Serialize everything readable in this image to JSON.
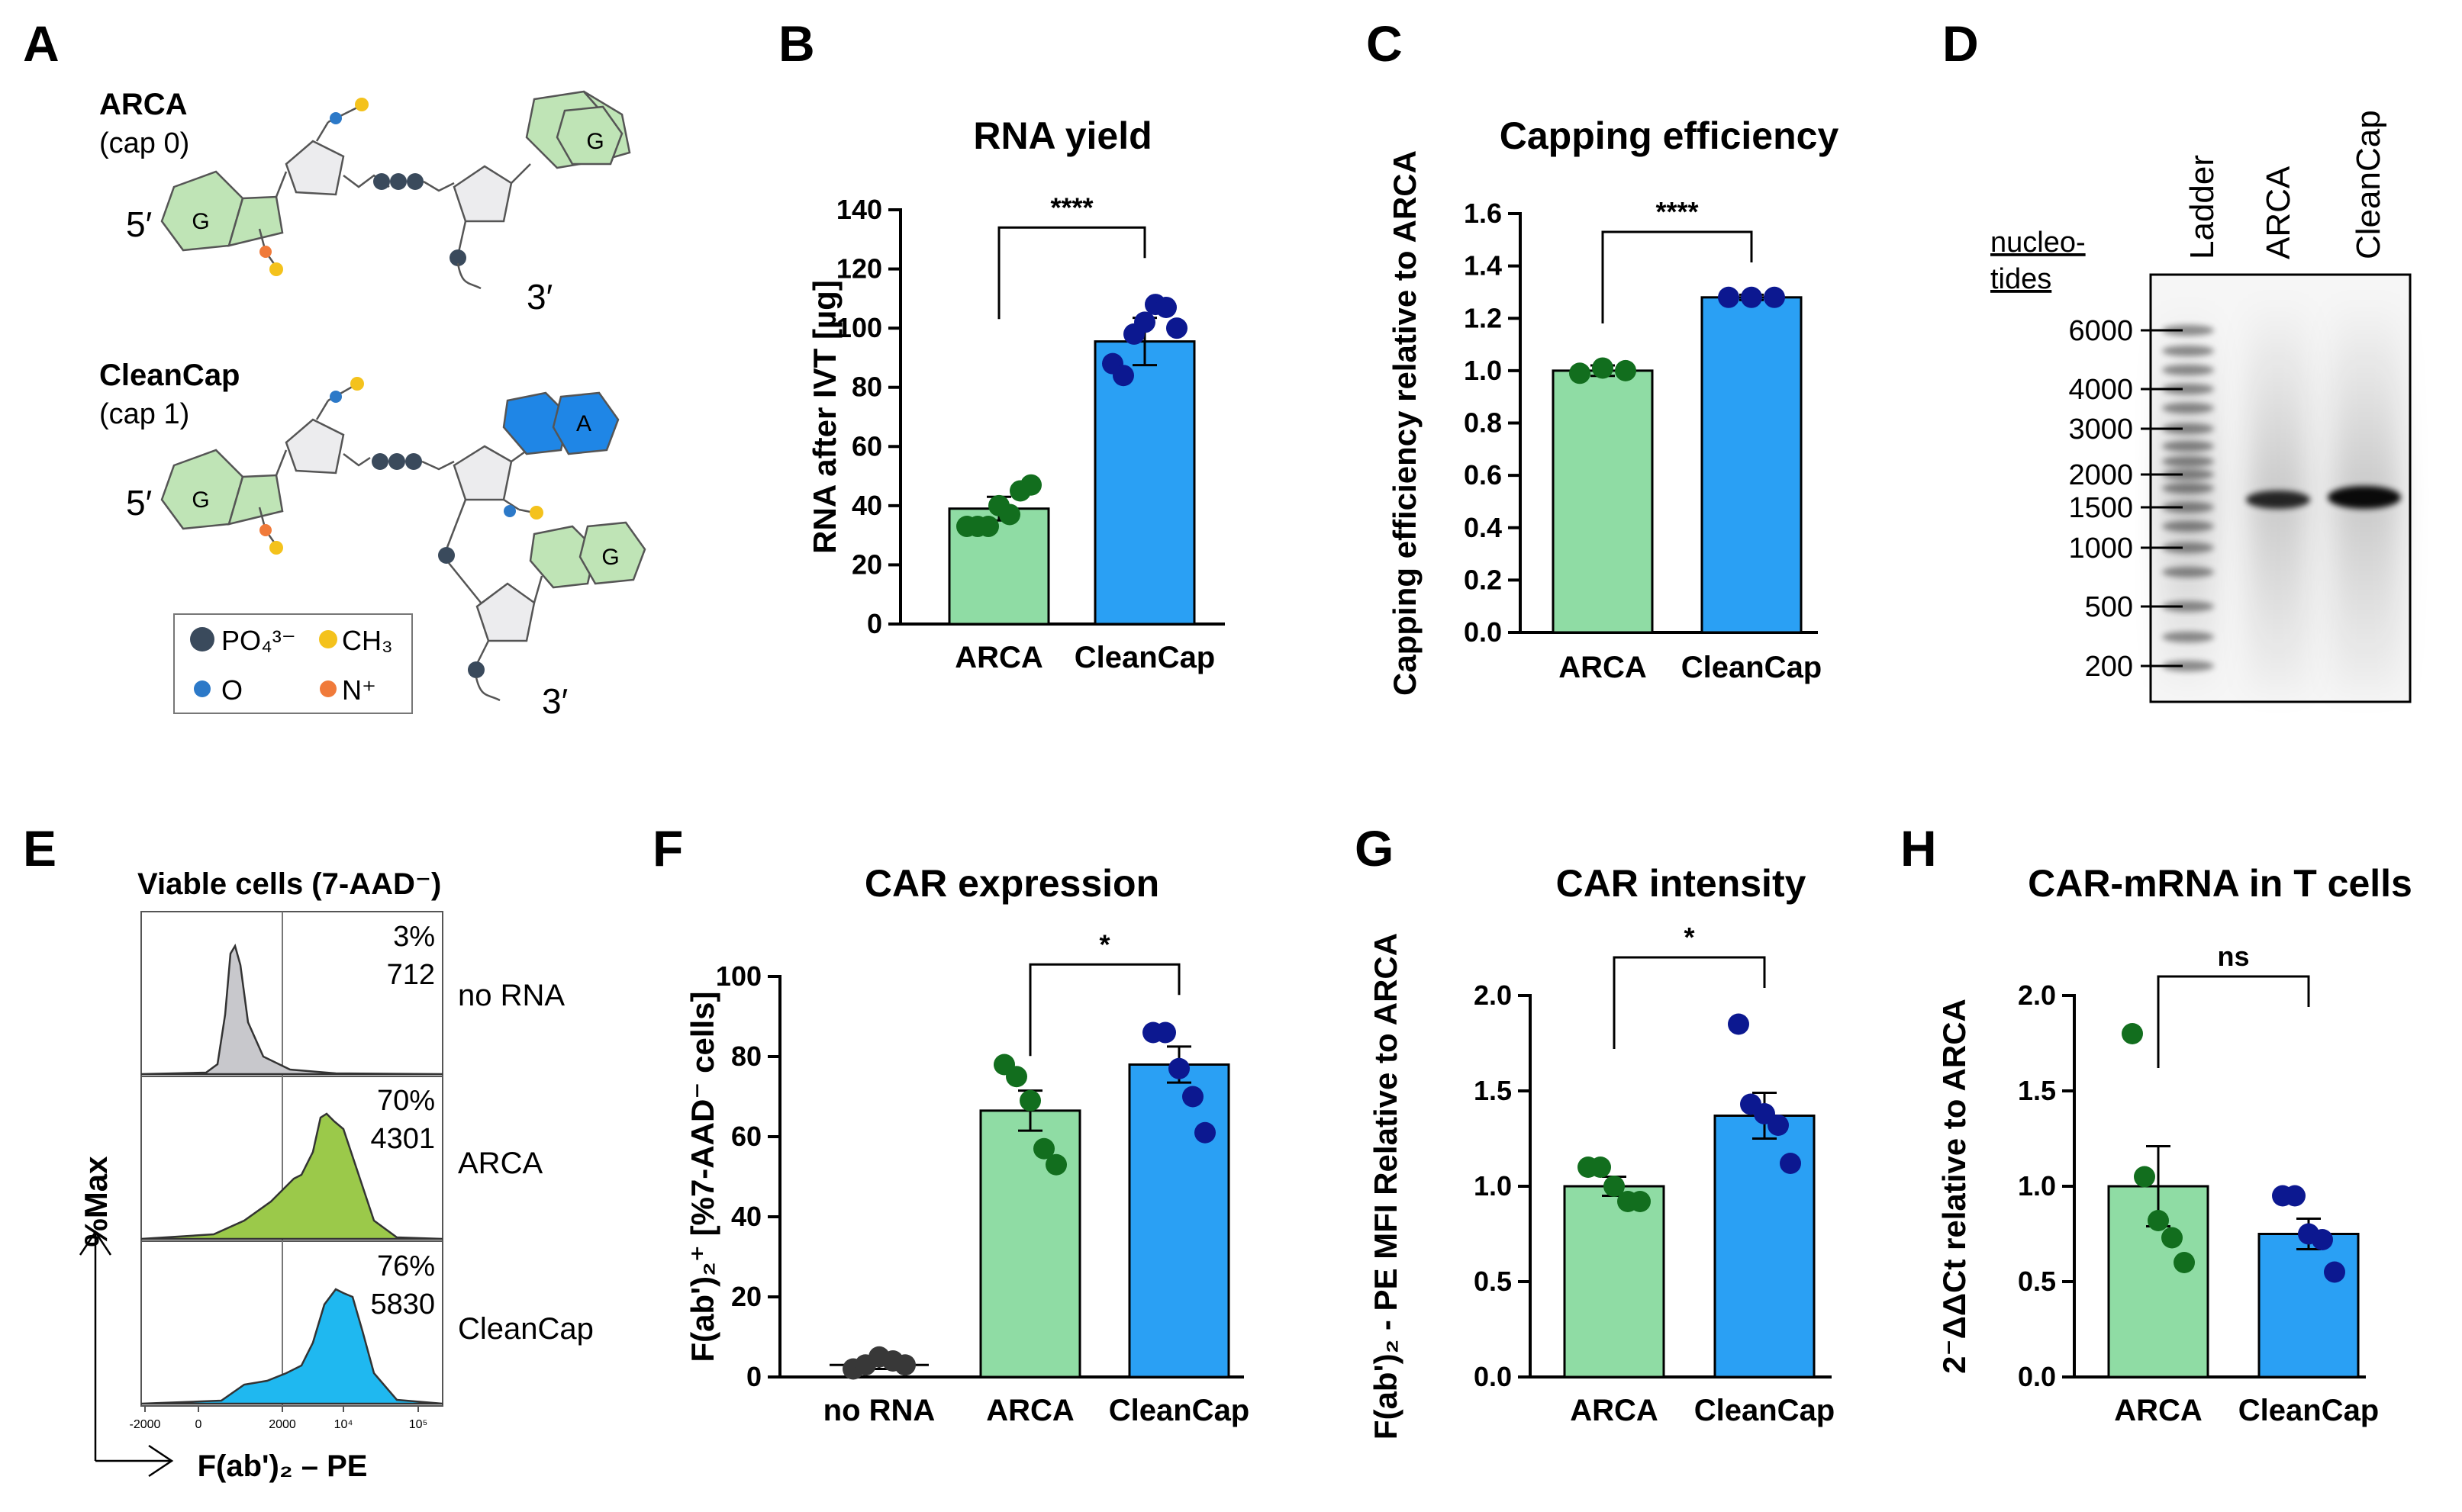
{
  "panel_labels": [
    "A",
    "B",
    "C",
    "D",
    "E",
    "F",
    "G",
    "H"
  ],
  "colors": {
    "green_bar": "#8fdca4",
    "blue_bar": "#2aa0f4",
    "green_dot": "#126e1e",
    "blue_dot": "#0c1890",
    "black_dot": "#383838",
    "pale_green": "#bfe4b6",
    "cap_blue": "#1f86e6",
    "hist_grey": "#c8c8cc",
    "hist_green": "#9bc94a",
    "hist_blue": "#1fb8f0"
  },
  "panelA": {
    "arca_name": "ARCA",
    "arca_cap": "(cap 0)",
    "cleancap_name": "CleanCap",
    "cleancap_cap": "(cap 1)",
    "five_prime": "5′",
    "three_prime": "3′",
    "base_g": "G",
    "base_a": "A",
    "legend": {
      "phosphate": "PO₄³⁻",
      "methyl": "CH₃",
      "oxygen": "O",
      "nitrogen": "N⁺"
    }
  },
  "panelD": {
    "axis_title_1": "nucleo-",
    "axis_title_2": "tides",
    "lanes": [
      "Ladder",
      "ARCA",
      "CleanCap"
    ],
    "markers": [
      "6000",
      "4000",
      "3000",
      "2000",
      "1500",
      "1000",
      "500",
      "200"
    ]
  },
  "panelE": {
    "title": "Viable cells (7-AAD⁻)",
    "y_label": "%Max",
    "x_label": "F(ab')₂ – PE",
    "x_ticks": [
      "-2000",
      "0",
      "2000",
      "10⁴",
      "10⁵"
    ],
    "gate": "2000",
    "rows": [
      {
        "label": "no RNA",
        "percent": "3%",
        "mfi": "712"
      },
      {
        "label": "ARCA",
        "percent": "70%",
        "mfi": "4301"
      },
      {
        "label": "CleanCap",
        "percent": "76%",
        "mfi": "5830"
      }
    ]
  },
  "chart_data": [
    {
      "panel": "B",
      "type": "bar",
      "title": "RNA yield",
      "ylabel": "RNA after IVT [µg]",
      "xlabel": "",
      "ylim": [
        0,
        140
      ],
      "yticks": [
        "0",
        "20",
        "40",
        "60",
        "80",
        "100",
        "120",
        "140"
      ],
      "categories": [
        "ARCA",
        "CleanCap"
      ],
      "values": [
        39,
        95.5
      ],
      "errors": [
        4,
        8
      ],
      "points": [
        [
          33,
          33,
          33,
          40,
          37,
          45,
          47
        ],
        [
          88,
          84,
          98,
          102,
          108,
          107,
          100
        ]
      ],
      "significance": {
        "label": "****",
        "between": [
          0,
          1
        ],
        "at": 134
      }
    },
    {
      "panel": "C",
      "type": "bar",
      "title": "Capping efficiency",
      "ylabel": "Capping efficiency relative to ARCA",
      "xlabel": "",
      "ylim": [
        0,
        1.6
      ],
      "yticks": [
        "0.0",
        "0.2",
        "0.4",
        "0.6",
        "0.8",
        "1.0",
        "1.2",
        "1.4",
        "1.6"
      ],
      "categories": [
        "ARCA",
        "CleanCap"
      ],
      "values": [
        1.0,
        1.28
      ],
      "errors": [
        0.02,
        0.01
      ],
      "points": [
        [
          0.99,
          1.01,
          1.0
        ],
        [
          1.28,
          1.28,
          1.28
        ]
      ],
      "significance": {
        "label": "****",
        "between": [
          0,
          1
        ],
        "at": 1.53
      }
    },
    {
      "panel": "F",
      "type": "bar",
      "title": "CAR expression",
      "ylabel": "F(ab')₂⁺ [%7-AAD⁻ cells]",
      "xlabel": "",
      "ylim": [
        0,
        100
      ],
      "yticks": [
        "0",
        "20",
        "40",
        "60",
        "80",
        "100"
      ],
      "categories": [
        "no RNA",
        "ARCA",
        "CleanCap"
      ],
      "values": [
        3,
        66.5,
        78
      ],
      "errors": [
        1,
        5,
        4.5
      ],
      "points": [
        [
          2,
          3,
          5,
          4,
          3
        ],
        [
          78,
          75,
          69,
          57,
          53
        ],
        [
          86,
          86,
          77,
          70,
          61
        ]
      ],
      "significance": {
        "label": "*",
        "between": [
          1,
          2
        ],
        "at": 103
      }
    },
    {
      "panel": "G",
      "type": "bar",
      "title": "CAR intensity",
      "ylabel": "F(ab')₂ - PE MFI Relative to ARCA",
      "xlabel": "",
      "ylim": [
        0,
        2.0
      ],
      "yticks": [
        "0.0",
        "0.5",
        "1.0",
        "1.5",
        "2.0"
      ],
      "categories": [
        "ARCA",
        "CleanCap"
      ],
      "values": [
        1.0,
        1.37
      ],
      "errors": [
        0.05,
        0.12
      ],
      "points": [
        [
          1.1,
          1.1,
          1.0,
          0.92,
          0.92
        ],
        [
          1.85,
          1.43,
          1.38,
          1.32,
          1.12
        ]
      ],
      "significance": {
        "label": "*",
        "between": [
          0,
          1
        ],
        "at": 2.2
      }
    },
    {
      "panel": "H",
      "type": "bar",
      "title": "CAR-mRNA in T cells",
      "ylabel": "2⁻ΔΔCt relative to ARCA",
      "xlabel": "",
      "ylim": [
        0,
        2.0
      ],
      "yticks": [
        "0.0",
        "0.5",
        "1.0",
        "1.5",
        "2.0"
      ],
      "categories": [
        "ARCA",
        "CleanCap"
      ],
      "values": [
        1.0,
        0.75
      ],
      "errors": [
        0.21,
        0.08
      ],
      "points": [
        [
          1.8,
          1.05,
          0.82,
          0.73,
          0.6
        ],
        [
          0.95,
          0.95,
          0.75,
          0.72,
          0.55
        ]
      ],
      "significance": {
        "label": "ns",
        "between": [
          0,
          1
        ],
        "at": 2.1
      }
    }
  ]
}
